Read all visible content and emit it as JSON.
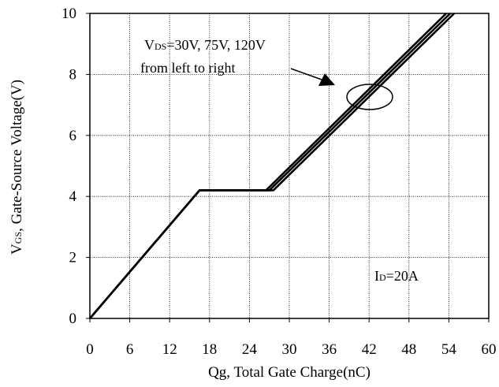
{
  "chart_data": {
    "type": "line",
    "xlabel": "Qg, Total Gate Charge(nC)",
    "ylabel_main": "V",
    "ylabel_sub": "GS",
    "ylabel_rest": ", Gate-Source Voltage(V)",
    "xlim": [
      0,
      60
    ],
    "ylim": [
      0,
      10
    ],
    "x_ticks": [
      0,
      6,
      12,
      18,
      24,
      30,
      36,
      42,
      48,
      54,
      60
    ],
    "x_tick_labels": [
      "0",
      "6",
      "12",
      "18",
      "24",
      "30",
      "36",
      "42",
      "48",
      "54",
      "60"
    ],
    "y_ticks": [
      0,
      2,
      4,
      6,
      8,
      10
    ],
    "y_tick_labels": [
      "0",
      "2",
      "4",
      "6",
      "8",
      "10"
    ],
    "grid": true,
    "series": [
      {
        "x": [
          0,
          16.5,
          26.5,
          53.6
        ],
        "y": [
          0,
          4.2,
          4.2,
          10
        ]
      },
      {
        "x": [
          0,
          16.5,
          27.0,
          54.2
        ],
        "y": [
          0,
          4.2,
          4.2,
          10
        ]
      },
      {
        "x": [
          0,
          16.5,
          27.6,
          54.8
        ],
        "y": [
          0,
          4.2,
          4.2,
          10
        ]
      }
    ],
    "annotations": {
      "vds_main": "V",
      "vds_sub": "DS",
      "vds_rest": "=30V, 75V, 120V",
      "vds_line2": "from left to right",
      "id_main": "I",
      "id_sub": "D",
      "id_rest": "=20A"
    },
    "line_color": "#000000"
  }
}
